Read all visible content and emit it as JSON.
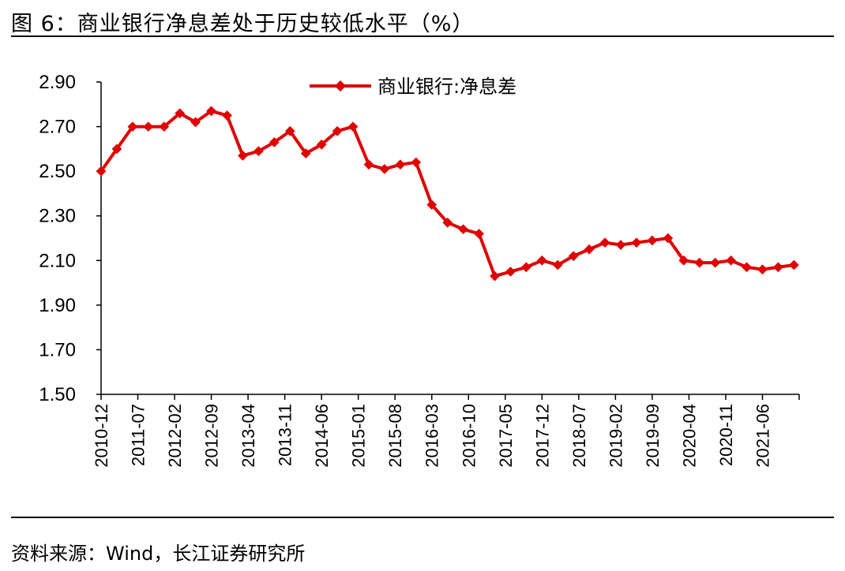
{
  "figure": {
    "title": "图 6：商业银行净息差处于历史较低水平（%）",
    "source": "资料来源：Wind，长江证券研究所"
  },
  "chart_data": {
    "type": "line",
    "title": "",
    "xlabel": "",
    "ylabel": "",
    "ylim": [
      1.5,
      2.9
    ],
    "yticks": [
      "2.90",
      "2.70",
      "2.50",
      "2.30",
      "2.10",
      "1.90",
      "1.70",
      "1.50"
    ],
    "xticks": [
      "2010-12",
      "2011-07",
      "2012-02",
      "2012-09",
      "2013-04",
      "2013-11",
      "2014-06",
      "2015-01",
      "2015-08",
      "2016-03",
      "2016-10",
      "2017-05",
      "2017-12",
      "2018-07",
      "2019-02",
      "2019-09",
      "2020-04",
      "2020-11",
      "2021-06"
    ],
    "grid": false,
    "legend_position": "top-center",
    "series": [
      {
        "name": "商业银行:净息差",
        "color": "#e00000",
        "x": [
          "2010-12",
          "2011-03",
          "2011-06",
          "2011-09",
          "2011-12",
          "2012-03",
          "2012-06",
          "2012-09",
          "2012-12",
          "2013-03",
          "2013-06",
          "2013-09",
          "2013-12",
          "2014-03",
          "2014-06",
          "2014-09",
          "2014-12",
          "2015-03",
          "2015-06",
          "2015-09",
          "2015-12",
          "2016-03",
          "2016-06",
          "2016-09",
          "2016-12",
          "2017-03",
          "2017-06",
          "2017-09",
          "2017-12",
          "2018-03",
          "2018-06",
          "2018-09",
          "2018-12",
          "2019-03",
          "2019-06",
          "2019-09",
          "2019-12",
          "2020-03",
          "2020-06",
          "2020-09",
          "2020-12",
          "2021-03",
          "2021-06",
          "2021-09",
          "2021-12"
        ],
        "values": [
          2.5,
          2.6,
          2.7,
          2.7,
          2.7,
          2.76,
          2.72,
          2.77,
          2.75,
          2.57,
          2.59,
          2.63,
          2.68,
          2.58,
          2.62,
          2.68,
          2.7,
          2.53,
          2.51,
          2.53,
          2.54,
          2.35,
          2.27,
          2.24,
          2.22,
          2.03,
          2.05,
          2.07,
          2.1,
          2.08,
          2.12,
          2.15,
          2.18,
          2.17,
          2.18,
          2.19,
          2.2,
          2.1,
          2.09,
          2.09,
          2.1,
          2.07,
          2.06,
          2.07,
          2.08
        ]
      }
    ]
  }
}
